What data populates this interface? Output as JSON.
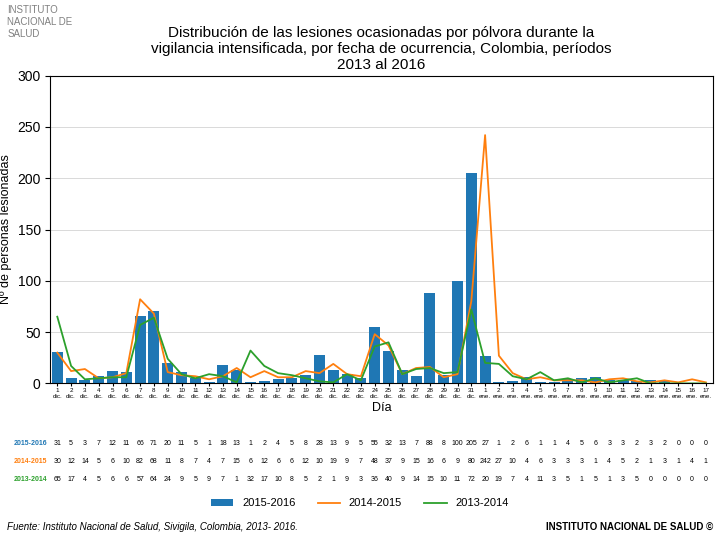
{
  "chart_data": {
    "type": "bar",
    "title": "Distribución de las lesiones ocasionadas por pólvora durante la\nvigilancia intensificada, por fecha de ocurrencia, Colombia, períodos\n2013 al 2016",
    "xlabel": "Día",
    "ylabel": "Nº de personas lesionadas",
    "categories": [
      "1\ndic.",
      "2\ndic.",
      "3\ndic.",
      "4\ndic.",
      "5\ndic.",
      "6\ndic.",
      "7\ndic.",
      "8\ndic.",
      "9\ndic.",
      "10\ndic.",
      "11\ndic.",
      "12\ndic.",
      "13\ndic.",
      "14\ndic.",
      "15\ndic.",
      "16\ndic.",
      "17\ndic.",
      "18\ndic.",
      "19\ndic.",
      "20\ndic.",
      "21\ndic.",
      "22\ndic.",
      "23\ndic.",
      "24\ndic.",
      "25\ndic.",
      "26\ndic.",
      "27\ndic.",
      "28\ndic.",
      "29\ndic.",
      "30\ndic.",
      "31\ndic.",
      "1\nene.",
      "2\nene.",
      "3\nene.",
      "4\nene.",
      "5\nene.",
      "6\nene.",
      "7\nene.",
      "8\nene.",
      "9\nene.",
      "10\nene.",
      "11\nene.",
      "12\nene.",
      "13\nene.",
      "14\nene.",
      "15\nene.",
      "16\nene.",
      "17\nene."
    ],
    "series": [
      {
        "name": "2015-2016",
        "type": "bar",
        "values": [
          31,
          5,
          3,
          7,
          12,
          11,
          66,
          71,
          20,
          11,
          5,
          1,
          18,
          13,
          1,
          2,
          4,
          5,
          8,
          28,
          13,
          9,
          5,
          55,
          32,
          13,
          7,
          88,
          8,
          100,
          205,
          27,
          1,
          2,
          6,
          1,
          1,
          4,
          5,
          6,
          3,
          3,
          2,
          3,
          2,
          0,
          0,
          0
        ]
      },
      {
        "name": "2014-2015",
        "type": "line",
        "values": [
          30,
          12,
          14,
          5,
          6,
          10,
          82,
          68,
          11,
          8,
          7,
          4,
          7,
          15,
          6,
          12,
          6,
          6,
          12,
          10,
          19,
          9,
          7,
          48,
          37,
          9,
          15,
          16,
          6,
          9,
          80,
          242,
          27,
          10,
          4,
          6,
          3,
          3,
          3,
          1,
          4,
          5,
          2,
          1,
          3,
          1,
          4,
          1
        ]
      },
      {
        "name": "2013-2014",
        "type": "line",
        "values": [
          65,
          17,
          4,
          5,
          6,
          6,
          57,
          64,
          24,
          9,
          5,
          9,
          7,
          1,
          32,
          17,
          10,
          8,
          5,
          2,
          1,
          9,
          3,
          36,
          40,
          9,
          14,
          15,
          10,
          11,
          72,
          20,
          19,
          7,
          4,
          11,
          3,
          5,
          1,
          5,
          1,
          3,
          5,
          0,
          0,
          0,
          0,
          0
        ]
      }
    ],
    "ylim": [
      0,
      300
    ],
    "yticks": [
      0,
      50,
      100,
      150,
      200,
      250,
      300
    ],
    "grid": true,
    "legend": "lower center",
    "annotations": [
      "INSTITUTO\nNACIONAL DE\nSALUD",
      "Fuente: Instituto Nacional de Salud, Sivigila, Colombia, 2013- 2016.",
      "INSTITUTO NACIONAL DE SALUD ©"
    ]
  }
}
